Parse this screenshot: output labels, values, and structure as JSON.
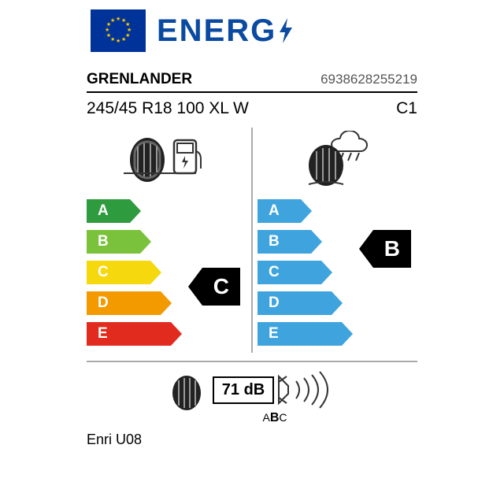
{
  "header": {
    "energy_text": "ENERG",
    "energy_color": "#0a4aa0"
  },
  "brand": "GRENLANDER",
  "product_code": "6938628255219",
  "tyre_size": "245/45 R18 100 XL W",
  "class_code": "C1",
  "fuel": {
    "grades": [
      "A",
      "B",
      "C",
      "D",
      "E"
    ],
    "colors": [
      "#2e9b3e",
      "#7ac23c",
      "#f5d80d",
      "#f29a00",
      "#e22b1f"
    ],
    "widths": [
      55,
      68,
      81,
      94,
      107
    ],
    "selected": "C",
    "selected_index": 2
  },
  "wet": {
    "grades": [
      "A",
      "B",
      "C",
      "D",
      "E"
    ],
    "color": "#3fa4de",
    "widths": [
      55,
      68,
      81,
      94,
      107
    ],
    "selected": "B",
    "selected_index": 1
  },
  "noise": {
    "value": "71 dB",
    "classes": "A B C",
    "selected": "B"
  },
  "model": "Enri U08",
  "layout": {
    "arrow_height": 30,
    "arrow_gap": 9,
    "badge_color": "#000000"
  }
}
